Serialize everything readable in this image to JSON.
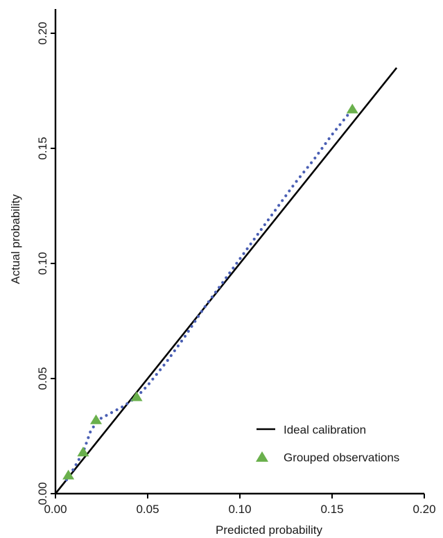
{
  "chart_data": {
    "type": "scatter",
    "title": "",
    "xlabel": "Predicted probability",
    "ylabel": "Actual probability",
    "xlim": [
      0.0,
      0.2
    ],
    "ylim": [
      0.0,
      0.2
    ],
    "x_ticks": [
      0.0,
      0.05,
      0.1,
      0.15,
      0.2
    ],
    "x_tick_labels": [
      "0.00",
      "0.05",
      "0.10",
      "0.15",
      "0.20"
    ],
    "y_ticks": [
      0.0,
      0.05,
      0.1,
      0.15,
      0.2
    ],
    "y_tick_labels": [
      "0.00",
      "0.05",
      "0.10",
      "0.15",
      "0.20"
    ],
    "grid": false,
    "legend_position": "bottom-right",
    "series": [
      {
        "name": "Ideal calibration",
        "kind": "line",
        "style": "solid",
        "color": "#000000",
        "x": [
          0.0,
          0.185
        ],
        "y": [
          0.0,
          0.185
        ]
      },
      {
        "name": "Grouped observations",
        "kind": "scatter",
        "marker": "triangle",
        "color": "#6ab04c",
        "x": [
          0.007,
          0.015,
          0.022,
          0.044,
          0.161
        ],
        "y": [
          0.008,
          0.018,
          0.032,
          0.042,
          0.167
        ]
      },
      {
        "kind": "smooth",
        "style": "dotted",
        "color": "#4a5fb4",
        "x": [
          0.006,
          0.01,
          0.015,
          0.019,
          0.023,
          0.03,
          0.037,
          0.044,
          0.05,
          0.06,
          0.07,
          0.08,
          0.09,
          0.1,
          0.11,
          0.12,
          0.13,
          0.14,
          0.15,
          0.16
        ],
        "y": [
          0.006,
          0.011,
          0.018,
          0.027,
          0.032,
          0.035,
          0.038,
          0.042,
          0.047,
          0.057,
          0.068,
          0.08,
          0.091,
          0.102,
          0.113,
          0.124,
          0.135,
          0.145,
          0.156,
          0.166
        ]
      }
    ]
  }
}
